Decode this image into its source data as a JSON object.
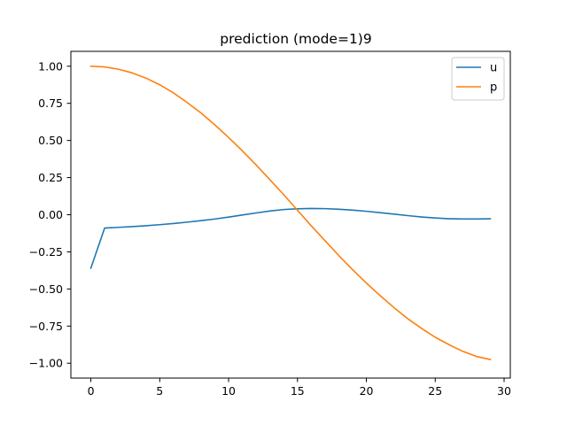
{
  "chart_data": {
    "type": "line",
    "title": "prediction (mode=1)9",
    "xlabel": "",
    "ylabel": "",
    "xlim": [
      -1.45,
      30.45
    ],
    "ylim": [
      -1.1,
      1.1
    ],
    "xticks": [
      0,
      5,
      10,
      15,
      20,
      25,
      30
    ],
    "yticks": [
      -1.0,
      -0.75,
      -0.5,
      -0.25,
      0.0,
      0.25,
      0.5,
      0.75,
      1.0
    ],
    "xtick_labels": [
      "0",
      "5",
      "10",
      "15",
      "20",
      "25",
      "30"
    ],
    "ytick_labels": [
      "−1.00",
      "−0.75",
      "−0.50",
      "−0.25",
      "0.00",
      "0.25",
      "0.50",
      "0.75",
      "1.00"
    ],
    "grid": false,
    "legend_position": "top-right",
    "x": [
      0,
      1,
      2,
      3,
      4,
      5,
      6,
      7,
      8,
      9,
      10,
      11,
      12,
      13,
      14,
      15,
      16,
      17,
      18,
      19,
      20,
      21,
      22,
      23,
      24,
      25,
      26,
      27,
      28,
      29
    ],
    "series": [
      {
        "name": "u",
        "color": "#1f77b4",
        "values": [
          -0.36,
          -0.09,
          -0.085,
          -0.08,
          -0.074,
          -0.067,
          -0.059,
          -0.05,
          -0.04,
          -0.029,
          -0.016,
          -0.002,
          0.012,
          0.025,
          0.035,
          0.04,
          0.042,
          0.041,
          0.037,
          0.031,
          0.023,
          0.014,
          0.004,
          -0.006,
          -0.015,
          -0.022,
          -0.027,
          -0.029,
          -0.029,
          -0.027
        ]
      },
      {
        "name": "p",
        "color": "#ff7f0e",
        "values": [
          1.0,
          0.995,
          0.98,
          0.955,
          0.92,
          0.875,
          0.82,
          0.755,
          0.685,
          0.605,
          0.52,
          0.43,
          0.335,
          0.235,
          0.135,
          0.03,
          -0.075,
          -0.175,
          -0.275,
          -0.37,
          -0.46,
          -0.545,
          -0.625,
          -0.7,
          -0.765,
          -0.825,
          -0.875,
          -0.92,
          -0.955,
          -0.975
        ]
      }
    ]
  }
}
